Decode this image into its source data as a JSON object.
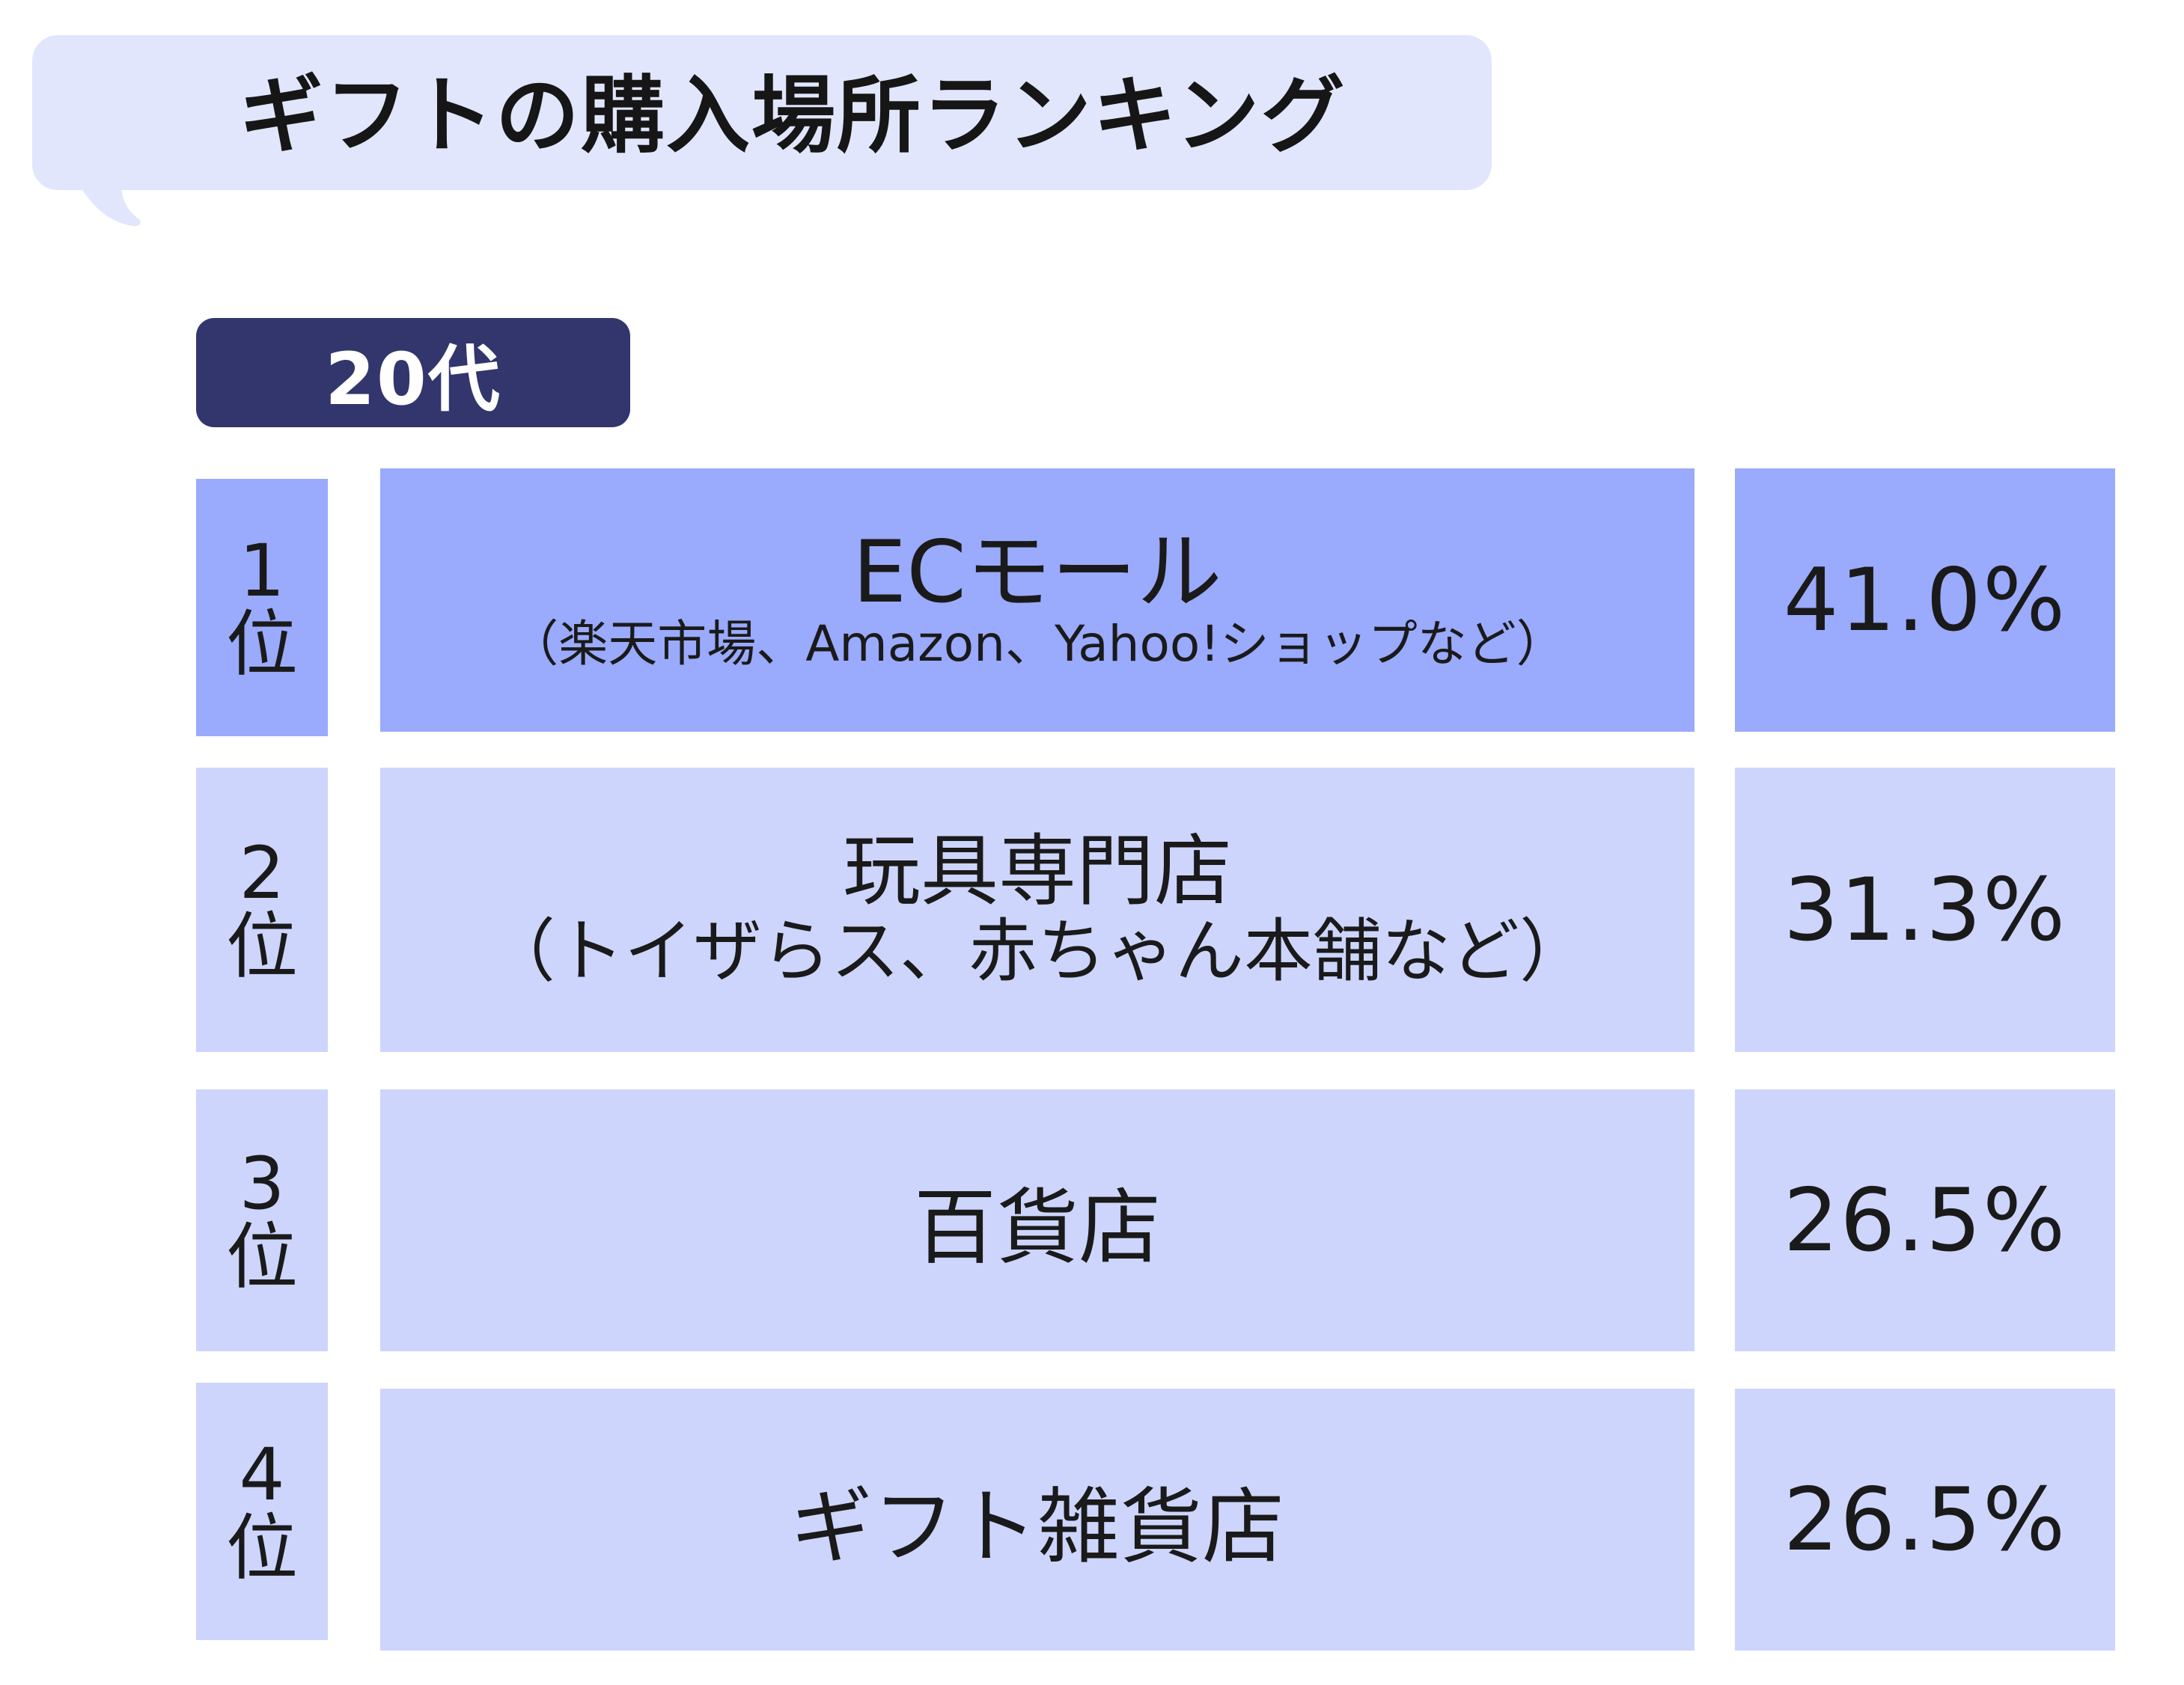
{
  "title": "ギフトの購入場所ランキング",
  "age_group": "20代",
  "colors": {
    "bubble": "#e1e6fd",
    "badge": "#32366d",
    "top_row": "#9aaafc",
    "other_rows": "#cdd5fd"
  },
  "chart_data": {
    "type": "table",
    "title": "ギフトの購入場所ランキング",
    "group": "20代",
    "rows": [
      {
        "rank": "1",
        "unit": "位",
        "name": "ECモール",
        "detail": "（楽天市場、Amazon、Yahoo!ショップなど）",
        "value": "41.0%"
      },
      {
        "rank": "2",
        "unit": "位",
        "name": "玩具専門店",
        "detail": "（トイザらス、赤ちゃん本舗など）",
        "value": "31.3%"
      },
      {
        "rank": "3",
        "unit": "位",
        "name": "百貨店",
        "detail": "",
        "value": "26.5%"
      },
      {
        "rank": "4",
        "unit": "位",
        "name": "ギフト雑貨店",
        "detail": "",
        "value": "26.5%"
      }
    ],
    "values": [
      41.0,
      31.3,
      26.5,
      26.5
    ]
  }
}
